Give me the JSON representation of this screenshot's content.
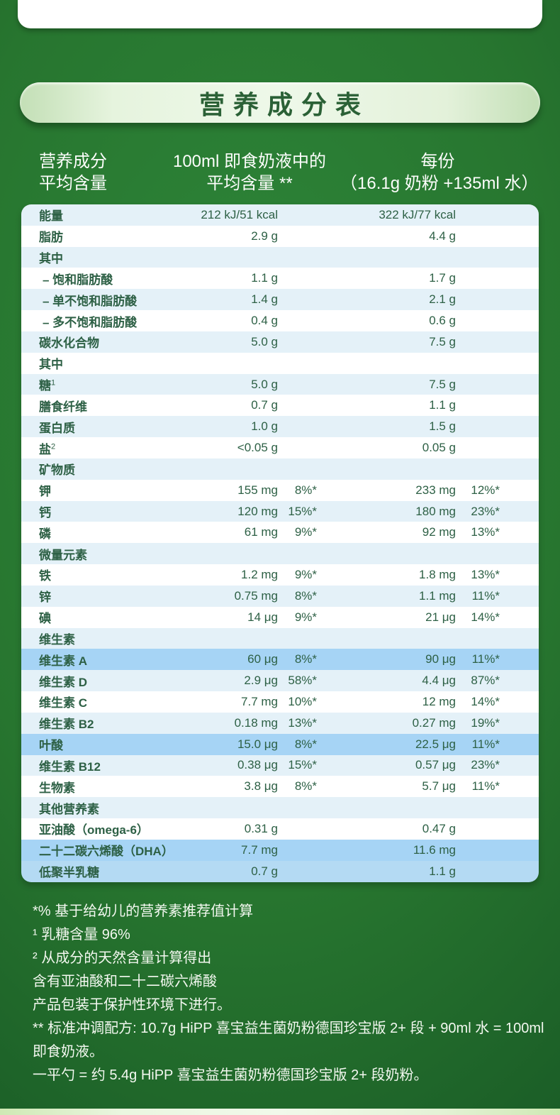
{
  "section": {
    "title": "营养成分表"
  },
  "columns": {
    "col1_line1": "营养成分",
    "col1_line2": "平均含量",
    "col2_line1": "100ml 即食奶液中的",
    "col2_line2": "平均含量 **",
    "col3_line1": "每份",
    "col3_line2": "（16.1g 奶粉 +135ml 水）"
  },
  "table": {
    "rows": [
      {
        "name": "能量",
        "sup": "",
        "v1": "212 kJ/51 kcal",
        "p1": "",
        "v2": "322 kJ/77 kcal",
        "p2": "",
        "bg": "lb",
        "indent": false
      },
      {
        "name": "脂肪",
        "sup": "",
        "v1": "2.9 g",
        "p1": "",
        "v2": "4.4 g",
        "p2": "",
        "bg": "w",
        "indent": false
      },
      {
        "name": "其中",
        "sup": "",
        "v1": "",
        "p1": "",
        "v2": "",
        "p2": "",
        "bg": "lb",
        "indent": false
      },
      {
        "name": "– 饱和脂肪酸",
        "sup": "",
        "v1": "1.1 g",
        "p1": "",
        "v2": "1.7 g",
        "p2": "",
        "bg": "w",
        "indent": true
      },
      {
        "name": "– 单不饱和脂肪酸",
        "sup": "",
        "v1": "1.4 g",
        "p1": "",
        "v2": "2.1 g",
        "p2": "",
        "bg": "lb",
        "indent": true
      },
      {
        "name": "– 多不饱和脂肪酸",
        "sup": "",
        "v1": "0.4 g",
        "p1": "",
        "v2": "0.6 g",
        "p2": "",
        "bg": "w",
        "indent": true
      },
      {
        "name": "碳水化合物",
        "sup": "",
        "v1": "5.0 g",
        "p1": "",
        "v2": "7.5 g",
        "p2": "",
        "bg": "lb",
        "indent": false
      },
      {
        "name": "其中",
        "sup": "",
        "v1": "",
        "p1": "",
        "v2": "",
        "p2": "",
        "bg": "w",
        "indent": false
      },
      {
        "name": "糖",
        "sup": "1",
        "v1": "5.0 g",
        "p1": "",
        "v2": "7.5 g",
        "p2": "",
        "bg": "lb",
        "indent": false
      },
      {
        "name": "膳食纤维",
        "sup": "",
        "v1": "0.7 g",
        "p1": "",
        "v2": "1.1 g",
        "p2": "",
        "bg": "w",
        "indent": false
      },
      {
        "name": "蛋白质",
        "sup": "",
        "v1": "1.0 g",
        "p1": "",
        "v2": "1.5 g",
        "p2": "",
        "bg": "lb",
        "indent": false
      },
      {
        "name": "盐",
        "sup": "2",
        "v1": "<0.05 g",
        "p1": "",
        "v2": "0.05 g",
        "p2": "",
        "bg": "w",
        "indent": false
      },
      {
        "name": "矿物质",
        "sup": "",
        "v1": "",
        "p1": "",
        "v2": "",
        "p2": "",
        "bg": "lb",
        "indent": false
      },
      {
        "name": "钾",
        "sup": "",
        "v1": "155 mg",
        "p1": "8%*",
        "v2": "233 mg",
        "p2": "12%*",
        "bg": "w",
        "indent": false
      },
      {
        "name": "钙",
        "sup": "",
        "v1": "120 mg",
        "p1": "15%*",
        "v2": "180 mg",
        "p2": "23%*",
        "bg": "lb",
        "indent": false
      },
      {
        "name": "磷",
        "sup": "",
        "v1": "61 mg",
        "p1": "9%*",
        "v2": "92 mg",
        "p2": "13%*",
        "bg": "w",
        "indent": false
      },
      {
        "name": "微量元素",
        "sup": "",
        "v1": "",
        "p1": "",
        "v2": "",
        "p2": "",
        "bg": "lb",
        "indent": false
      },
      {
        "name": "铁",
        "sup": "",
        "v1": "1.2 mg",
        "p1": "9%*",
        "v2": "1.8 mg",
        "p2": "13%*",
        "bg": "w",
        "indent": false
      },
      {
        "name": "锌",
        "sup": "",
        "v1": "0.75 mg",
        "p1": "8%*",
        "v2": "1.1 mg",
        "p2": "11%*",
        "bg": "lb",
        "indent": false
      },
      {
        "name": "碘",
        "sup": "",
        "v1": "14 μg",
        "p1": "9%*",
        "v2": "21 μg",
        "p2": "14%*",
        "bg": "w",
        "indent": false
      },
      {
        "name": "维生素",
        "sup": "",
        "v1": "",
        "p1": "",
        "v2": "",
        "p2": "",
        "bg": "lb",
        "indent": false
      },
      {
        "name": "维生素 A",
        "sup": "",
        "v1": "60 μg",
        "p1": "8%*",
        "v2": "90 μg",
        "p2": "11%*",
        "bg": "hl",
        "indent": false
      },
      {
        "name": "维生素 D",
        "sup": "",
        "v1": "2.9 μg",
        "p1": "58%*",
        "v2": "4.4 μg",
        "p2": "87%*",
        "bg": "lb",
        "indent": false
      },
      {
        "name": "维生素 C",
        "sup": "",
        "v1": "7.7 mg",
        "p1": "10%*",
        "v2": "12 mg",
        "p2": "14%*",
        "bg": "w",
        "indent": false
      },
      {
        "name": "维生素 B2",
        "sup": "",
        "v1": "0.18 mg",
        "p1": "13%*",
        "v2": "0.27 mg",
        "p2": "19%*",
        "bg": "lb",
        "indent": false
      },
      {
        "name": "叶酸",
        "sup": "",
        "v1": "15.0 μg",
        "p1": "8%*",
        "v2": "22.5 μg",
        "p2": "11%*",
        "bg": "hl",
        "indent": false
      },
      {
        "name": "维生素 B12",
        "sup": "",
        "v1": "0.38 μg",
        "p1": "15%*",
        "v2": "0.57 μg",
        "p2": "23%*",
        "bg": "lb",
        "indent": false
      },
      {
        "name": "生物素",
        "sup": "",
        "v1": "3.8 μg",
        "p1": "8%*",
        "v2": "5.7 μg",
        "p2": "11%*",
        "bg": "w",
        "indent": false
      },
      {
        "name": "其他营养素",
        "sup": "",
        "v1": "",
        "p1": "",
        "v2": "",
        "p2": "",
        "bg": "lb",
        "indent": false
      },
      {
        "name": "亚油酸（omega-6）",
        "sup": "",
        "v1": "0.31 g",
        "p1": "",
        "v2": "0.47 g",
        "p2": "",
        "bg": "w",
        "indent": false
      },
      {
        "name": "二十二碳六烯酸（DHA）",
        "sup": "",
        "v1": "7.7 mg",
        "p1": "",
        "v2": "11.6 mg",
        "p2": "",
        "bg": "hl",
        "indent": false
      },
      {
        "name": "低聚半乳糖",
        "sup": "",
        "v1": "0.7 g",
        "p1": "",
        "v2": "1.1 g",
        "p2": "",
        "bg": "hl2",
        "indent": false
      }
    ]
  },
  "footnotes": [
    "*% 基于给幼儿的营养素推荐值计算",
    "¹ 乳糖含量 96%",
    "² 从成分的天然含量计算得出",
    "含有亚油酸和二十二碳六烯酸",
    "产品包装于保护性环境下进行。",
    "** 标准冲调配方: 10.7g HiPP 喜宝益生菌奶粉德国珍宝版 2+ 段 + 90ml 水 = 100ml 即食奶液。",
    "一平勺 = 约 5.4g  HiPP 喜宝益生菌奶粉德国珍宝版 2+ 段奶粉。"
  ],
  "colors": {
    "background_green": "#2a7c33",
    "pill_green": "#e6f4de",
    "text_green": "#2d6045",
    "row_light_blue": "#e4f1f8",
    "row_white": "#ffffff",
    "row_highlight_blue": "#a6d4f5",
    "row_highlight_blue_soft": "#b4daf3",
    "header_text": "#ffffff"
  }
}
